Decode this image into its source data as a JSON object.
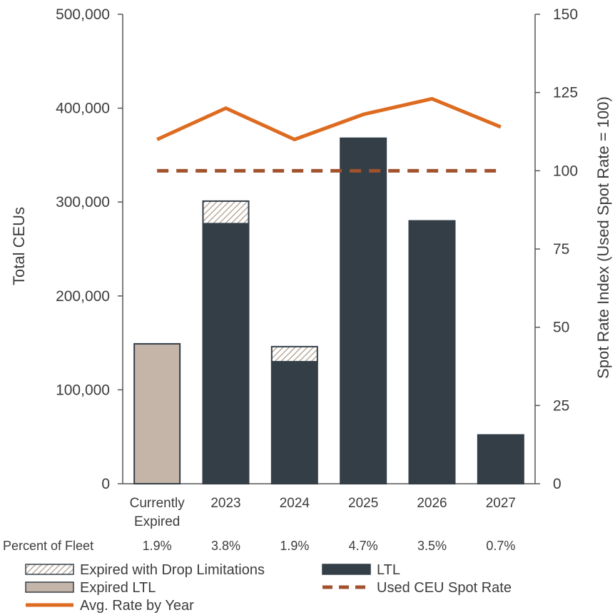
{
  "chart_data": {
    "type": "bar",
    "categories": [
      [
        "Currently",
        "Expired"
      ],
      [
        "2023"
      ],
      [
        "2024"
      ],
      [
        "2025"
      ],
      [
        "2026"
      ],
      [
        "2027"
      ]
    ],
    "series": [
      {
        "name": "LTL",
        "kind": "bar",
        "color": "#333e47",
        "values": [
          0,
          277000,
          130000,
          368000,
          280000,
          52000
        ]
      },
      {
        "name": "Expired with Drop Limitations",
        "kind": "bar",
        "pattern": "hatched",
        "color": "#c9bdb0",
        "values": [
          0,
          24000,
          16000,
          0,
          0,
          0
        ]
      },
      {
        "name": "Expired LTL",
        "kind": "bar",
        "color": "#c4b5a8",
        "values": [
          149000,
          0,
          0,
          0,
          0,
          0
        ]
      },
      {
        "name": "Used CEU Spot Rate",
        "kind": "line",
        "axis": "right",
        "dashed": true,
        "color": "#a0522d",
        "values": [
          100,
          100,
          100,
          100,
          100,
          100
        ]
      },
      {
        "name": "Avg. Rate by Year",
        "kind": "line",
        "axis": "right",
        "color": "#dd6b20",
        "values": [
          110,
          120,
          110,
          118,
          123,
          114
        ]
      }
    ],
    "ylabel": "Total CEUs",
    "y2label": "Spot Rate Index (Used Spot Rate = 100)",
    "ylim": [
      0,
      500000
    ],
    "y2lim": [
      0,
      150
    ],
    "yticks": [
      "0",
      "100,000",
      "200,000",
      "300,000",
      "400,000",
      "500,000"
    ],
    "y2ticks": [
      "0",
      "25",
      "50",
      "75",
      "100",
      "125",
      "150"
    ],
    "row_label": "Percent of Fleet",
    "row_values": [
      "1.9%",
      "3.8%",
      "1.9%",
      "4.7%",
      "3.5%",
      "0.7%"
    ],
    "legend": [
      {
        "label": "Expired with Drop Limitations",
        "series": "Expired with Drop Limitations"
      },
      {
        "label": "LTL",
        "series": "LTL"
      },
      {
        "label": "Expired LTL",
        "series": "Expired LTL"
      },
      {
        "label": "Used CEU Spot Rate",
        "series": "Used CEU Spot Rate"
      },
      {
        "label": "Avg. Rate by Year",
        "series": "Avg. Rate by Year"
      }
    ],
    "grid": false,
    "legend_position": "bottom"
  }
}
